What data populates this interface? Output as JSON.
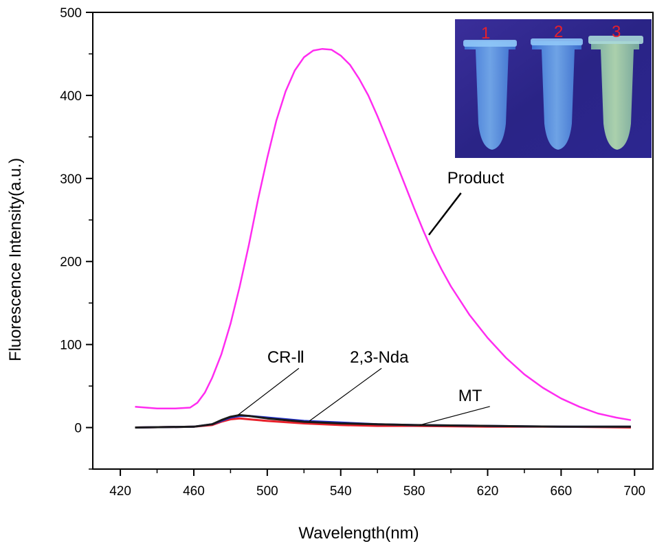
{
  "chart_data": {
    "type": "line",
    "xlabel": "Wavelength(nm)",
    "ylabel": "Fluorescence Intensity(a.u.)",
    "xlim": [
      405,
      710
    ],
    "ylim": [
      -50,
      500
    ],
    "xticks": [
      420,
      460,
      500,
      540,
      580,
      620,
      660,
      700
    ],
    "yticks": [
      0,
      100,
      200,
      300,
      400,
      500
    ],
    "grid": false,
    "series": [
      {
        "name": "Product",
        "color": "#ff2cf0",
        "x": [
          428,
          440,
          450,
          458,
          462,
          466,
          470,
          475,
          480,
          485,
          490,
          495,
          500,
          505,
          510,
          515,
          520,
          525,
          530,
          535,
          540,
          545,
          550,
          555,
          560,
          565,
          570,
          575,
          580,
          585,
          590,
          595,
          600,
          610,
          620,
          630,
          640,
          650,
          660,
          670,
          680,
          690,
          698
        ],
        "y": [
          25,
          23,
          23,
          24,
          30,
          42,
          60,
          88,
          125,
          170,
          220,
          275,
          325,
          370,
          405,
          430,
          446,
          454,
          456,
          455,
          448,
          437,
          420,
          400,
          375,
          348,
          320,
          292,
          264,
          237,
          212,
          190,
          170,
          136,
          108,
          84,
          64,
          48,
          35,
          25,
          17,
          12,
          9
        ]
      },
      {
        "name": "CR-Ⅱ",
        "color": "#1a1a1a",
        "x": [
          428,
          460,
          470,
          475,
          480,
          485,
          490,
          500,
          520,
          540,
          560,
          580,
          620,
          660,
          698
        ],
        "y": [
          0,
          1,
          4,
          9,
          13,
          15,
          14,
          11,
          7,
          5,
          4,
          3,
          2,
          1,
          1
        ]
      },
      {
        "name": "2,3-Nda",
        "color": "#e8202a",
        "x": [
          428,
          460,
          470,
          475,
          480,
          485,
          490,
          500,
          520,
          540,
          560,
          580,
          620,
          660,
          698
        ],
        "y": [
          0,
          1,
          3,
          7,
          10,
          11,
          10,
          8,
          5,
          3,
          2,
          2,
          1,
          1,
          0
        ]
      },
      {
        "name": "MT",
        "color": "#1f2fd0",
        "x": [
          428,
          460,
          470,
          475,
          480,
          485,
          490,
          500,
          520,
          540,
          560,
          580,
          620,
          660,
          698
        ],
        "y": [
          0,
          1,
          4,
          8,
          12,
          14,
          14,
          12,
          8,
          6,
          4,
          3,
          2,
          1,
          1
        ]
      }
    ],
    "annotations": [
      {
        "text": "Product",
        "x": 598,
        "y": 294,
        "arrow_to_x": 588,
        "arrow_to_y": 232
      },
      {
        "text": "CR-Ⅱ",
        "x": 500,
        "y": 78,
        "arrow_to_x": 484,
        "arrow_to_y": 15
      },
      {
        "text": "2,3-Nda",
        "x": 545,
        "y": 78,
        "arrow_to_x": 523,
        "arrow_to_y": 8
      },
      {
        "text": "MT",
        "x": 604,
        "y": 32,
        "arrow_to_x": 583,
        "arrow_to_y": 3
      }
    ],
    "inset": {
      "description_labels": [
        "1",
        "2",
        "3"
      ]
    }
  }
}
